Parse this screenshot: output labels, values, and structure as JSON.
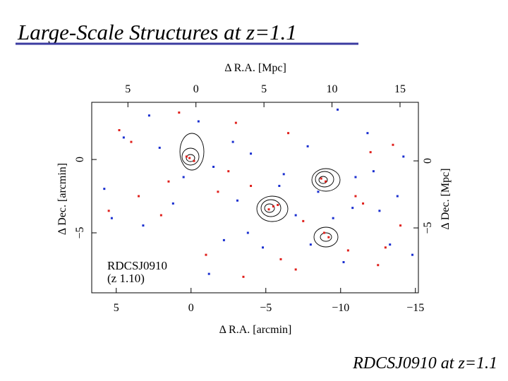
{
  "chart_data": {
    "type": "scatter",
    "title": "Large-Scale Structures at z=1.1",
    "footer": "RDCSJ0910 at z=1.1",
    "xlabel": "Δ R.A.  [arcmin]",
    "x2label": "Δ R.A.  [Mpc]",
    "ylabel": "Δ Dec.  [arcmin]",
    "y2label": "Δ Dec.  [Mpc]",
    "annotations": [
      "RDCSJ0910",
      "(z   1.10)"
    ],
    "xlim": [
      6.64,
      -15.2
    ],
    "xticks": [
      5,
      0,
      {
        "value": -5,
        "label": "−5"
      },
      {
        "value": -10,
        "label": "−10"
      },
      {
        "value": -15,
        "label": "−15"
      }
    ],
    "x2lim": [
      -7.66,
      16.35
    ],
    "x2ticks": [
      {
        "value": -5,
        "label": "5"
      },
      0,
      5,
      10,
      15
    ],
    "ylim": [
      -9.09,
      3.9
    ],
    "yticks": [
      0,
      {
        "value": -5,
        "label": "−5"
      }
    ],
    "y2lim": [
      -9.84,
      4.37
    ],
    "y2ticks": [
      0,
      {
        "value": -5,
        "label": "−5"
      }
    ],
    "series": [
      {
        "color": "#e0201c",
        "x": [
          0.1,
          -0.2,
          0.3,
          -9,
          -8.7,
          -5.5,
          -5.2,
          -5.8,
          -9.2,
          -8.9,
          4,
          3.5,
          2,
          -1,
          -3,
          -4,
          -6.5,
          -7,
          -11,
          -12,
          -13.5,
          -14,
          5.5,
          1.5,
          -2.5,
          -10.5,
          -12.5,
          -3.5,
          -7.5,
          -11.5,
          0.8,
          -1.8,
          -6,
          -13,
          4.8
        ],
        "values": [
          0.1,
          -0.1,
          0.2,
          -1.5,
          -1.3,
          -3.2,
          -3.4,
          -3.1,
          -5.3,
          -5.0,
          1.2,
          -2.5,
          -3.8,
          -6.5,
          2.5,
          -1.8,
          1.8,
          -7.5,
          -2.5,
          0.5,
          1.0,
          -4.5,
          -3.5,
          -1.5,
          -0.8,
          -6.2,
          -7.2,
          -8,
          -4.2,
          -3,
          3.2,
          -2.2,
          -6.8,
          -6,
          2
        ]
      },
      {
        "color": "#1a2fd0",
        "x": [
          5.8,
          4.5,
          3.2,
          2.1,
          1.2,
          -0.5,
          -1.5,
          -2.2,
          -3.1,
          -4,
          -4.8,
          -6.2,
          -7,
          -7.8,
          -8.5,
          -9.5,
          -10.2,
          -11,
          -11.8,
          -12.6,
          -13.3,
          -14.2,
          -14.8,
          5.3,
          2.8,
          -1.2,
          -3.8,
          -5.9,
          -8,
          -10.8,
          -12.2,
          -13.8,
          0.5,
          -2.8,
          -9.8
        ],
        "values": [
          -2,
          1.5,
          -4.5,
          0.8,
          -3,
          2.6,
          -0.5,
          -5.5,
          -2.8,
          0.4,
          -6,
          -1,
          -3.8,
          0.9,
          -2.2,
          -4,
          -7,
          -1.2,
          1.8,
          -3.5,
          -5.8,
          0.2,
          -6.5,
          -4,
          3,
          -7.8,
          -5,
          -1.8,
          -5.8,
          -3.3,
          -0.8,
          -2.5,
          -1.2,
          1.2,
          3.4
        ]
      }
    ]
  }
}
